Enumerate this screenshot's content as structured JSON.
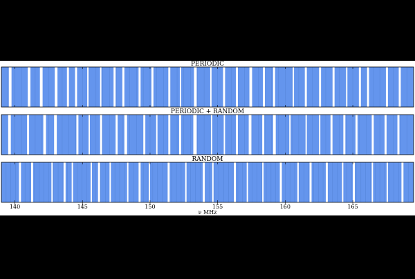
{
  "chart_data": {
    "type": "bar",
    "xlabel": "ν MHz",
    "xlim": [
      139,
      169.5
    ],
    "xticks": [
      140,
      145,
      150,
      155,
      160,
      165
    ],
    "colors": {
      "fill": "#6495ED",
      "stroke": "#1f3f7f",
      "background": "#ffffff"
    },
    "panels": [
      {
        "title": "PERIODIC",
        "gaps": [
          [
            139.55,
            139.75
          ],
          [
            140.95,
            141.15
          ],
          [
            141.85,
            142.05
          ],
          [
            142.95,
            143.15
          ],
          [
            143.85,
            144.0
          ],
          [
            144.45,
            144.6
          ],
          [
            145.35,
            145.45
          ],
          [
            146.3,
            146.4
          ],
          [
            147.3,
            147.45
          ],
          [
            147.95,
            148.1
          ],
          [
            149.15,
            149.3
          ],
          [
            150.1,
            150.25
          ],
          [
            151.35,
            151.5
          ],
          [
            152.2,
            152.3
          ],
          [
            153.25,
            153.45
          ],
          [
            154.45,
            154.55
          ],
          [
            155.4,
            155.55
          ],
          [
            156.35,
            156.5
          ],
          [
            157.35,
            157.55
          ],
          [
            158.35,
            158.5
          ],
          [
            159.1,
            159.25
          ],
          [
            160.55,
            160.65
          ],
          [
            161.45,
            161.6
          ],
          [
            162.5,
            162.65
          ],
          [
            163.5,
            163.65
          ],
          [
            164.5,
            164.6
          ],
          [
            165.45,
            165.6
          ],
          [
            166.05,
            166.2
          ],
          [
            167.45,
            167.6
          ],
          [
            168.4,
            168.55
          ]
        ]
      },
      {
        "title": "PERIODIC + RANDOM",
        "gaps": [
          [
            139.5,
            139.7
          ],
          [
            140.9,
            141.05
          ],
          [
            142.1,
            142.3
          ],
          [
            142.9,
            143.1
          ],
          [
            144.55,
            144.7
          ],
          [
            145.45,
            145.55
          ],
          [
            146.3,
            146.45
          ],
          [
            147.45,
            147.6
          ],
          [
            148.1,
            148.3
          ],
          [
            149.5,
            149.65
          ],
          [
            150.45,
            150.55
          ],
          [
            151.35,
            151.5
          ],
          [
            152.15,
            152.3
          ],
          [
            153.2,
            153.45
          ],
          [
            154.5,
            154.6
          ],
          [
            155.45,
            155.55
          ],
          [
            156.35,
            156.5
          ],
          [
            157.3,
            157.5
          ],
          [
            158.3,
            158.45
          ],
          [
            159.1,
            159.3
          ],
          [
            160.3,
            160.4
          ],
          [
            161.5,
            161.6
          ],
          [
            162.5,
            162.6
          ],
          [
            163.35,
            163.5
          ],
          [
            164.3,
            164.45
          ],
          [
            165.2,
            165.35
          ],
          [
            166.4,
            166.55
          ],
          [
            167.35,
            167.5
          ],
          [
            168.3,
            168.45
          ]
        ]
      },
      {
        "title": "RANDOM",
        "gaps": [
          [
            140.3,
            140.45
          ],
          [
            141.2,
            141.35
          ],
          [
            142.7,
            142.8
          ],
          [
            143.6,
            143.75
          ],
          [
            144.2,
            144.3
          ],
          [
            145.6,
            145.7
          ],
          [
            146.15,
            146.3
          ],
          [
            147.0,
            147.1
          ],
          [
            148.3,
            148.4
          ],
          [
            149.15,
            149.3
          ],
          [
            149.9,
            150.0
          ],
          [
            151.3,
            151.45
          ],
          [
            152.6,
            152.7
          ],
          [
            153.9,
            154.05
          ],
          [
            154.6,
            154.7
          ],
          [
            156.2,
            156.35
          ],
          [
            157.15,
            157.25
          ],
          [
            158.3,
            158.4
          ],
          [
            159.6,
            159.75
          ],
          [
            160.9,
            161.0
          ],
          [
            161.8,
            161.95
          ],
          [
            163.0,
            163.15
          ],
          [
            164.2,
            164.3
          ],
          [
            165.0,
            165.15
          ],
          [
            166.4,
            166.5
          ],
          [
            167.5,
            167.6
          ],
          [
            168.6,
            168.75
          ]
        ]
      }
    ]
  }
}
